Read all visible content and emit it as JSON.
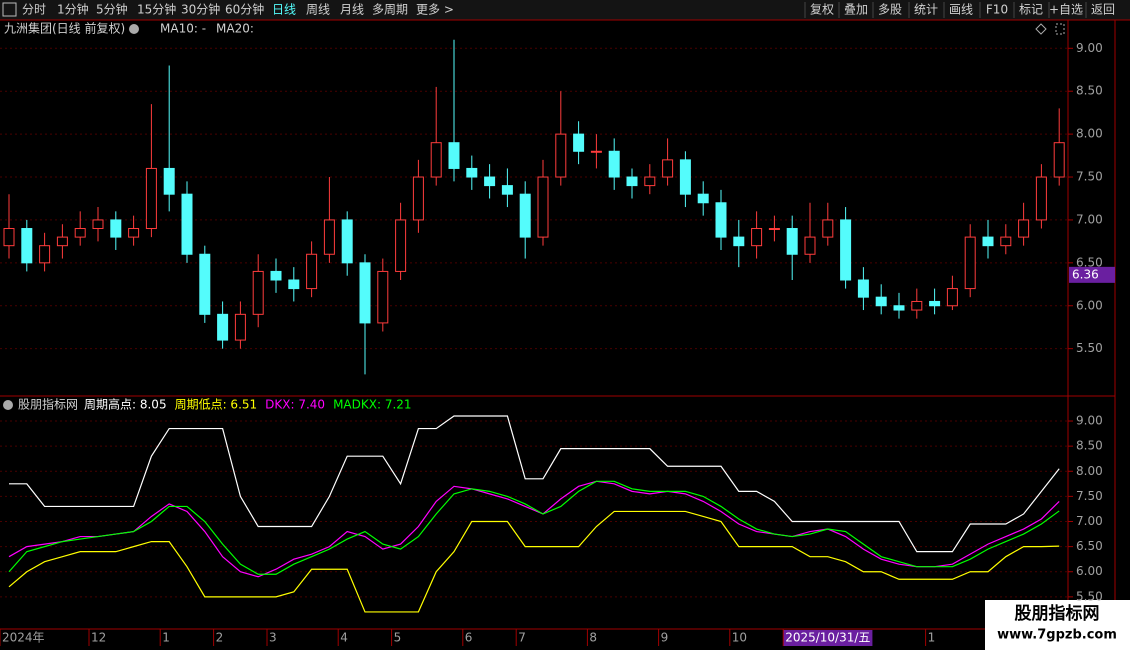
{
  "toolbar": {
    "left": [
      "分时",
      "1分钟",
      "5分钟",
      "15分钟",
      "30分钟",
      "60分钟",
      "日线",
      "周线",
      "月线",
      "多周期",
      "更多 >"
    ],
    "active": 6,
    "right": [
      "复权",
      "叠加",
      "多股",
      "统计",
      "画线",
      "F10",
      "标记",
      "+自选",
      "返回"
    ]
  },
  "watermark": {
    "title": "股朋指标网",
    "url": "www.7gpzb.com"
  },
  "chart_data": [
    {
      "type": "candlestick",
      "title": "九洲集团(日线 前复权)",
      "ma_labels": [
        {
          "text": "MA10: -",
          "color": "#e0e0e0"
        },
        {
          "text": "MA20:",
          "color": "#ffff00"
        }
      ],
      "up_color": "#ff3c3c",
      "down_color": "#54fcfc",
      "cursor_price": 6.36,
      "cursor": 44,
      "categories": [
        "2024年",
        null,
        null,
        null,
        null,
        "12",
        null,
        null,
        null,
        "1",
        null,
        null,
        "2",
        null,
        null,
        "3",
        null,
        null,
        null,
        "4",
        null,
        null,
        "5",
        null,
        null,
        null,
        "6",
        null,
        null,
        "7",
        null,
        null,
        null,
        "8",
        null,
        null,
        null,
        "9",
        null,
        null,
        null,
        "10",
        null,
        null,
        "2025/10/31/五",
        null,
        null,
        null,
        null,
        null,
        null,
        null,
        "1",
        null,
        null,
        null,
        null,
        null,
        null,
        null
      ],
      "open": [
        6.7,
        6.9,
        6.5,
        6.7,
        6.8,
        6.9,
        7.0,
        6.8,
        6.9,
        7.6,
        7.3,
        6.6,
        5.9,
        5.6,
        5.9,
        6.4,
        6.3,
        6.2,
        6.6,
        7.0,
        6.5,
        5.8,
        6.4,
        7.0,
        7.5,
        7.9,
        7.6,
        7.5,
        7.4,
        7.3,
        6.8,
        7.5,
        8.0,
        7.8,
        7.8,
        7.5,
        7.4,
        7.5,
        7.7,
        7.3,
        7.2,
        6.8,
        6.7,
        6.9,
        6.9,
        6.6,
        6.8,
        7.0,
        6.3,
        6.1,
        6.0,
        5.95,
        6.05,
        6.0,
        6.2,
        6.8,
        6.7,
        6.8,
        7.0,
        7.5
      ],
      "high": [
        7.3,
        7.0,
        6.85,
        6.95,
        7.1,
        7.15,
        7.1,
        7.05,
        8.35,
        8.8,
        7.45,
        6.7,
        6.05,
        6.05,
        6.6,
        6.55,
        6.45,
        6.75,
        7.5,
        7.1,
        6.6,
        6.55,
        7.2,
        7.7,
        8.55,
        9.1,
        7.75,
        7.65,
        7.6,
        7.45,
        7.7,
        8.5,
        8.15,
        8.0,
        7.95,
        7.6,
        7.65,
        7.95,
        7.8,
        7.45,
        7.35,
        7.0,
        7.1,
        7.05,
        7.05,
        7.2,
        7.2,
        7.15,
        6.45,
        6.25,
        6.15,
        6.2,
        6.2,
        6.35,
        6.95,
        7.0,
        6.95,
        7.2,
        7.65,
        8.3
      ],
      "low": [
        6.55,
        6.4,
        6.4,
        6.55,
        6.7,
        6.75,
        6.65,
        6.7,
        6.8,
        7.1,
        6.5,
        5.8,
        5.5,
        5.5,
        5.75,
        6.15,
        6.05,
        6.1,
        6.5,
        6.35,
        5.2,
        5.7,
        6.3,
        6.85,
        7.4,
        7.45,
        7.35,
        7.25,
        7.15,
        6.55,
        6.7,
        7.4,
        7.65,
        7.6,
        7.35,
        7.25,
        7.3,
        7.4,
        7.15,
        7.05,
        6.65,
        6.45,
        6.55,
        6.75,
        6.3,
        6.5,
        6.7,
        6.2,
        5.95,
        5.9,
        5.85,
        5.85,
        5.9,
        5.95,
        6.1,
        6.55,
        6.6,
        6.7,
        6.9,
        7.4
      ],
      "close": [
        6.9,
        6.5,
        6.7,
        6.8,
        6.9,
        7.0,
        6.8,
        6.9,
        7.6,
        7.3,
        6.6,
        5.9,
        5.6,
        5.9,
        6.4,
        6.3,
        6.2,
        6.6,
        7.0,
        6.5,
        5.8,
        6.4,
        7.0,
        7.5,
        7.9,
        7.6,
        7.5,
        7.4,
        7.3,
        6.8,
        7.5,
        8.0,
        7.8,
        7.8,
        7.5,
        7.4,
        7.5,
        7.7,
        7.3,
        7.2,
        6.8,
        6.7,
        6.9,
        6.9,
        6.6,
        6.8,
        7.0,
        6.3,
        6.1,
        6.0,
        5.95,
        6.05,
        6.0,
        6.2,
        6.8,
        6.7,
        6.8,
        7.0,
        7.5,
        7.9
      ],
      "ylim": [
        4.96,
        9.12
      ],
      "yticks": [
        {
          "value": 9,
          "label": "9.00"
        },
        {
          "value": 8.5,
          "label": "8.50"
        },
        {
          "value": 8,
          "label": "8.00"
        },
        {
          "value": 7.5,
          "label": "7.50"
        },
        {
          "value": 7,
          "label": "7.00"
        },
        {
          "value": 6.5,
          "label": "6.50"
        },
        {
          "value": 6,
          "label": "6.00"
        },
        {
          "value": 5.5,
          "label": "5.50"
        }
      ],
      "grid": true
    },
    {
      "type": "line",
      "title": "股朋指标网",
      "series": [
        {
          "name": "周期高点",
          "legend_label": "周期高点: 8.05",
          "color": "#ffffff",
          "values": [
            7.75,
            7.75,
            7.3,
            7.3,
            7.3,
            7.3,
            7.3,
            7.3,
            8.3,
            8.85,
            8.85,
            8.85,
            8.85,
            7.5,
            6.9,
            6.9,
            6.9,
            6.9,
            7.5,
            8.3,
            8.3,
            8.3,
            7.75,
            8.85,
            8.85,
            9.1,
            9.1,
            9.1,
            9.1,
            7.85,
            7.85,
            8.45,
            8.45,
            8.45,
            8.45,
            8.45,
            8.45,
            8.1,
            8.1,
            8.1,
            8.1,
            7.6,
            7.6,
            7.4,
            7.0,
            7.0,
            7.0,
            7.0,
            7.0,
            7.0,
            7.0,
            6.4,
            6.4,
            6.4,
            6.95,
            6.95,
            6.95,
            7.15,
            7.6,
            8.05
          ]
        },
        {
          "name": "周期低点",
          "legend_label": "周期低点: 6.51",
          "color": "#ffff00",
          "values": [
            5.7,
            6.0,
            6.2,
            6.3,
            6.4,
            6.4,
            6.4,
            6.5,
            6.6,
            6.6,
            6.1,
            5.5,
            5.5,
            5.5,
            5.5,
            5.5,
            5.6,
            6.05,
            6.05,
            6.05,
            5.2,
            5.2,
            5.2,
            5.2,
            6.0,
            6.4,
            7.0,
            7.0,
            7.0,
            6.5,
            6.5,
            6.5,
            6.5,
            6.9,
            7.2,
            7.2,
            7.2,
            7.2,
            7.2,
            7.1,
            7.0,
            6.5,
            6.5,
            6.5,
            6.5,
            6.3,
            6.3,
            6.2,
            6.0,
            6.0,
            5.85,
            5.85,
            5.85,
            5.85,
            6.0,
            6.0,
            6.3,
            6.5,
            6.5,
            6.51
          ]
        },
        {
          "name": "DKX",
          "legend_label": "DKX: 7.40",
          "color": "#ff00ff",
          "values": [
            6.3,
            6.5,
            6.55,
            6.6,
            6.7,
            6.7,
            6.75,
            6.8,
            7.1,
            7.35,
            7.2,
            6.8,
            6.3,
            6.0,
            5.9,
            6.05,
            6.25,
            6.35,
            6.5,
            6.8,
            6.7,
            6.45,
            6.55,
            6.9,
            7.4,
            7.7,
            7.65,
            7.55,
            7.45,
            7.3,
            7.15,
            7.45,
            7.7,
            7.8,
            7.75,
            7.6,
            7.55,
            7.6,
            7.55,
            7.4,
            7.2,
            6.95,
            6.8,
            6.75,
            6.7,
            6.8,
            6.85,
            6.7,
            6.45,
            6.25,
            6.15,
            6.1,
            6.1,
            6.15,
            6.35,
            6.55,
            6.7,
            6.85,
            7.05,
            7.4
          ]
        },
        {
          "name": "MADKX",
          "legend_label": "MADKX: 7.21",
          "color": "#00ff00",
          "values": [
            6.0,
            6.4,
            6.5,
            6.6,
            6.65,
            6.7,
            6.75,
            6.8,
            7.0,
            7.3,
            7.3,
            7.0,
            6.55,
            6.15,
            5.95,
            5.95,
            6.15,
            6.3,
            6.45,
            6.65,
            6.8,
            6.55,
            6.45,
            6.7,
            7.15,
            7.55,
            7.65,
            7.6,
            7.5,
            7.35,
            7.15,
            7.3,
            7.6,
            7.8,
            7.8,
            7.65,
            7.6,
            7.6,
            7.6,
            7.5,
            7.3,
            7.05,
            6.85,
            6.75,
            6.7,
            6.75,
            6.85,
            6.8,
            6.55,
            6.3,
            6.2,
            6.1,
            6.1,
            6.1,
            6.25,
            6.45,
            6.6,
            6.75,
            6.95,
            7.21
          ]
        }
      ],
      "ylim": [
        4.88,
        9.12
      ],
      "yticks": [
        {
          "value": 9,
          "label": "9.00"
        },
        {
          "value": 8.5,
          "label": "8.50"
        },
        {
          "value": 8,
          "label": "8.00"
        },
        {
          "value": 7.5,
          "label": "7.50"
        },
        {
          "value": 7,
          "label": "7.00"
        },
        {
          "value": 6.5,
          "label": "6.50"
        },
        {
          "value": 6,
          "label": "6.00"
        },
        {
          "value": 5.5,
          "label": "5.50"
        }
      ],
      "grid": true
    }
  ]
}
